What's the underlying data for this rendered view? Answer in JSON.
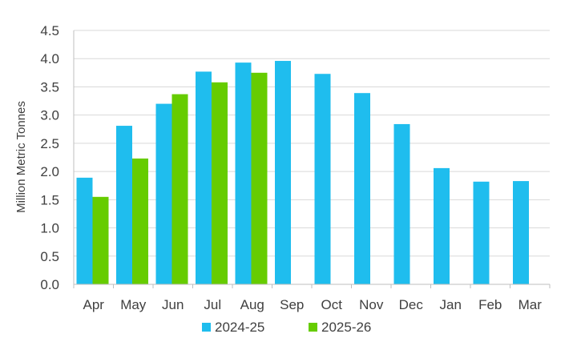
{
  "chart_data": {
    "type": "bar",
    "title": "",
    "xlabel": "",
    "ylabel": "Million Metric Tonnes",
    "ylim": [
      0,
      4.5
    ],
    "yticks": [
      "0.0",
      "0.5",
      "1.0",
      "1.5",
      "2.0",
      "2.5",
      "3.0",
      "3.5",
      "4.0",
      "4.5"
    ],
    "grid": true,
    "legend": "bottom",
    "categories": [
      "Apr",
      "May",
      "Jun",
      "Jul",
      "Aug",
      "Sep",
      "Oct",
      "Nov",
      "Dec",
      "Jan",
      "Feb",
      "Mar"
    ],
    "series": [
      {
        "name": "2024-25",
        "color": "#1fbdee",
        "values": [
          1.89,
          2.81,
          3.2,
          3.77,
          3.93,
          3.96,
          3.73,
          3.39,
          2.84,
          2.06,
          1.82,
          1.83
        ]
      },
      {
        "name": "2025-26",
        "color": "#66cc00",
        "values": [
          1.55,
          2.23,
          3.37,
          3.58,
          3.75,
          null,
          null,
          null,
          null,
          null,
          null,
          null
        ]
      }
    ]
  }
}
